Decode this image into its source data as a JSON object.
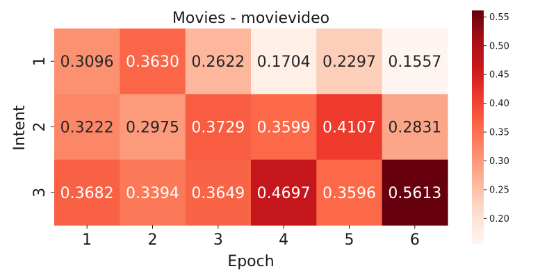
{
  "chart_data": {
    "type": "heatmap",
    "title": "Movies - movievideo",
    "xlabel": "Epoch",
    "ylabel": "Intent",
    "x_categories": [
      "1",
      "2",
      "3",
      "4",
      "5",
      "6"
    ],
    "y_categories": [
      "1",
      "2",
      "3"
    ],
    "values": [
      [
        0.3096,
        0.363,
        0.2622,
        0.1704,
        0.2297,
        0.1557
      ],
      [
        0.3222,
        0.2975,
        0.3729,
        0.3599,
        0.4107,
        0.2831
      ],
      [
        0.3682,
        0.3394,
        0.3649,
        0.4697,
        0.3596,
        0.5613
      ]
    ],
    "colormap": "Reds",
    "color_range": [
      0.1557,
      0.5613
    ],
    "colorbar_ticks": [
      0.2,
      0.25,
      0.3,
      0.35,
      0.4,
      0.45,
      0.5,
      0.55
    ],
    "colorbar_tick_labels": [
      "0.20",
      "0.25",
      "0.30",
      "0.35",
      "0.40",
      "0.45",
      "0.50",
      "0.55"
    ],
    "annotations": true
  }
}
